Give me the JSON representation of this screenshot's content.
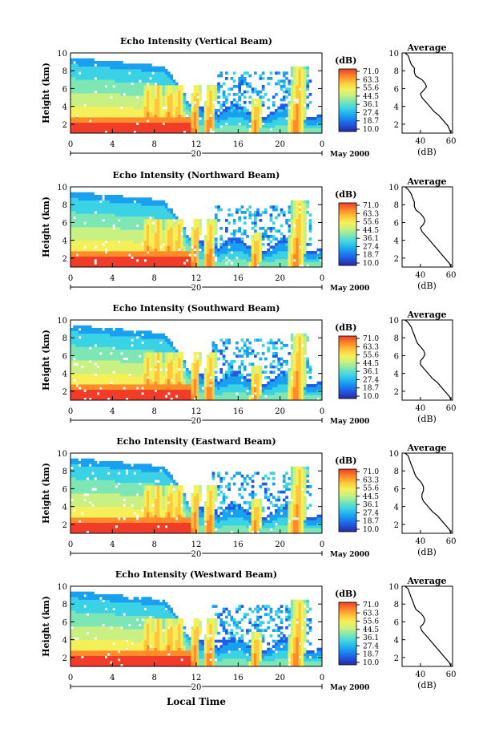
{
  "chart_data": [
    {
      "type": "heatmap",
      "title": "Echo Intensity (Vertical Beam)",
      "avg_values": [
        10,
        9.7,
        9.2,
        8.7,
        8.3,
        7.8,
        7.4,
        7,
        6.6,
        6.2,
        5.8,
        5.4,
        5.0,
        4.6,
        4.2,
        3.8,
        3.4,
        3.0,
        2.6,
        2.2,
        1.8,
        1.4,
        1.0
      ],
      "avg_x": [
        30,
        32,
        33,
        34,
        36,
        36,
        37,
        41,
        43,
        44,
        42,
        40,
        41,
        43,
        45,
        47,
        49,
        52,
        54,
        56,
        58,
        59,
        60
      ]
    },
    {
      "type": "heatmap",
      "title": "Echo Intensity (Northward Beam)",
      "avg_values": [
        10,
        9.7,
        9.2,
        8.7,
        8.3,
        7.8,
        7.4,
        7,
        6.6,
        6.2,
        5.8,
        5.4,
        5.0,
        4.6,
        4.2,
        3.8,
        3.4,
        3.0,
        2.6,
        2.2,
        1.8,
        1.4,
        1.0
      ],
      "avg_x": [
        30,
        32,
        34,
        35,
        36,
        36,
        37,
        40,
        42,
        43,
        42,
        40,
        41,
        43,
        45,
        47,
        49,
        51,
        53,
        55,
        57,
        59,
        60
      ]
    },
    {
      "type": "heatmap",
      "title": "Echo Intensity (Southward Beam)",
      "avg_values": [
        10,
        9.7,
        9.2,
        8.7,
        8.3,
        7.8,
        7.4,
        7,
        6.6,
        6.2,
        5.8,
        5.4,
        5.0,
        4.6,
        4.2,
        3.8,
        3.4,
        3.0,
        2.6,
        2.2,
        1.8,
        1.4,
        1.0
      ],
      "avg_x": [
        30,
        32,
        34,
        35,
        36,
        37,
        38,
        40,
        42,
        43,
        42,
        40,
        40,
        42,
        44,
        46,
        48,
        51,
        53,
        55,
        57,
        59,
        60
      ]
    },
    {
      "type": "heatmap",
      "title": "Echo Intensity (Eastward Beam)",
      "avg_values": [
        10,
        9.7,
        9.2,
        8.7,
        8.3,
        7.8,
        7.4,
        7,
        6.6,
        6.2,
        5.8,
        5.4,
        5.0,
        4.6,
        4.2,
        3.8,
        3.4,
        3.0,
        2.6,
        2.2,
        1.8,
        1.4,
        1.0
      ],
      "avg_x": [
        30,
        32,
        33,
        34,
        35,
        36,
        37,
        39,
        41,
        42,
        42,
        41,
        41,
        42,
        44,
        46,
        48,
        51,
        53,
        55,
        57,
        59,
        60
      ]
    },
    {
      "type": "heatmap",
      "title": "Echo Intensity (Westward Beam)",
      "avg_values": [
        10,
        9.7,
        9.2,
        8.7,
        8.3,
        7.8,
        7.4,
        7,
        6.6,
        6.2,
        5.8,
        5.4,
        5.0,
        4.6,
        4.2,
        3.8,
        3.4,
        3.0,
        2.6,
        2.2,
        1.8,
        1.4,
        1.0
      ],
      "avg_x": [
        30,
        32,
        33,
        34,
        35,
        36,
        37,
        40,
        42,
        43,
        42,
        40,
        41,
        43,
        45,
        47,
        49,
        51,
        53,
        55,
        57,
        59,
        60
      ]
    }
  ],
  "common": {
    "ylabel": "Height (km)",
    "yticks": [
      "2",
      "4",
      "6",
      "8",
      "10"
    ],
    "ylim": [
      1,
      10
    ],
    "xticks": [
      "0",
      "4",
      "8",
      "12",
      "16",
      "20",
      "0"
    ],
    "xlim": [
      0,
      24
    ],
    "date_day": "20",
    "date_month": "May 2000",
    "xlabel": "Local Time",
    "unit": "(dB)",
    "colorbar_ticks": [
      "71.0",
      "63.3",
      "55.6",
      "44.5",
      "36.1",
      "27.4",
      "18.7",
      "10.0"
    ],
    "avg_title": "Average",
    "avg_xlabel": "(dB)",
    "avg_xticks": [
      "40",
      "60"
    ],
    "avg_xlim": [
      28,
      61
    ],
    "avg_yticks": [
      "2",
      "4",
      "6",
      "8",
      "10"
    ]
  },
  "colors": {
    "scale": [
      "#2a2a9a",
      "#1e5ce6",
      "#19a0f0",
      "#3cd2e6",
      "#7de6b4",
      "#c8f082",
      "#f5f05a",
      "#ffc83c",
      "#ff8c28",
      "#f03c28"
    ]
  }
}
